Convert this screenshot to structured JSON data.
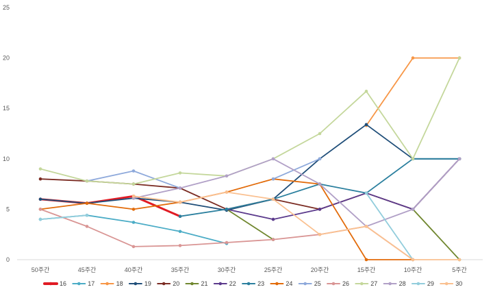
{
  "chart_data": {
    "type": "line",
    "title": "",
    "xlabel": "",
    "ylabel": "",
    "ylim": [
      0,
      25
    ],
    "y_ticks": [
      "0",
      "5",
      "10",
      "15",
      "20",
      "25"
    ],
    "grid": false,
    "legend_position": "bottom",
    "categories": [
      "50주간",
      "45주간",
      "40주간",
      "35주간",
      "30주간",
      "25주간",
      "20주간",
      "15주간",
      "10주간",
      "5주간"
    ],
    "series": [
      {
        "name": "16",
        "color": "#E01B24",
        "values": [
          6.0,
          5.6,
          6.3,
          4.3,
          null,
          null,
          null,
          null,
          null,
          null
        ]
      },
      {
        "name": "17",
        "color": "#4BACC6",
        "values": [
          4.0,
          4.4,
          3.7,
          2.8,
          1.6,
          null,
          null,
          null,
          null,
          null
        ]
      },
      {
        "name": "18",
        "color": "#F79646",
        "values": [
          null,
          null,
          null,
          null,
          null,
          null,
          null,
          13.3,
          20.0,
          20.0
        ]
      },
      {
        "name": "19",
        "color": "#1F4E79",
        "values": [
          6.0,
          5.6,
          6.1,
          5.7,
          4.9,
          6.0,
          10.0,
          13.4,
          10.0,
          10.0
        ]
      },
      {
        "name": "20",
        "color": "#7B2C23",
        "values": [
          8.0,
          7.8,
          7.5,
          7.1,
          5.0,
          6.0,
          5.0,
          6.6,
          5.0,
          10.0
        ]
      },
      {
        "name": "21",
        "color": "#70872F",
        "values": [
          null,
          null,
          null,
          null,
          5.0,
          2.0,
          null,
          null,
          5.0,
          0.0
        ]
      },
      {
        "name": "22",
        "color": "#5B3A8C",
        "values": [
          null,
          null,
          null,
          null,
          5.0,
          4.0,
          5.0,
          6.6,
          5.0,
          10.0
        ]
      },
      {
        "name": "23",
        "color": "#2A7F9E",
        "values": [
          null,
          null,
          null,
          4.3,
          5.0,
          6.0,
          7.5,
          6.6,
          10.0,
          10.0
        ]
      },
      {
        "name": "24",
        "color": "#E26B0A",
        "values": [
          5.0,
          5.6,
          5.0,
          5.7,
          6.7,
          8.0,
          7.5,
          0.0,
          0.0,
          null
        ]
      },
      {
        "name": "25",
        "color": "#8EA9DB",
        "values": [
          null,
          7.8,
          8.8,
          7.1,
          null,
          8.0,
          10.0,
          null,
          5.0,
          null
        ]
      },
      {
        "name": "26",
        "color": "#D99594",
        "values": [
          5.0,
          3.3,
          1.3,
          1.4,
          1.7,
          2.0,
          2.5,
          3.3,
          0.0,
          null
        ]
      },
      {
        "name": "27",
        "color": "#C4D79B",
        "values": [
          9.0,
          7.8,
          7.5,
          8.6,
          8.3,
          10.0,
          12.5,
          16.7,
          10.0,
          20.0
        ]
      },
      {
        "name": "28",
        "color": "#B1A0C7",
        "values": [
          null,
          null,
          6.1,
          7.1,
          8.3,
          10.0,
          7.5,
          3.3,
          5.0,
          10.0
        ]
      },
      {
        "name": "29",
        "color": "#92CDDC",
        "values": [
          4.0,
          4.4,
          null,
          null,
          null,
          null,
          null,
          6.6,
          0.0,
          null
        ]
      },
      {
        "name": "30",
        "color": "#FAC090",
        "values": [
          null,
          null,
          6.3,
          5.7,
          6.7,
          6.0,
          2.5,
          3.3,
          0.0,
          0.0
        ]
      }
    ]
  }
}
